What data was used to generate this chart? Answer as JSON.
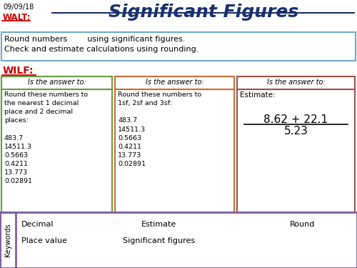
{
  "date": "09/09/18",
  "title": "Significant Figures",
  "walt_label": "WALT:",
  "walt_text_line1": "Round numbers        using significant figures.",
  "walt_text_line2": "Check and estimate calculations using rounding.",
  "wilf_label": "WILF:",
  "box1_header": "Is the answer to:",
  "box1_header_bg": "#8db96e",
  "box1_border": "#6a9a40",
  "box1_bg": "#e8f0d8",
  "box1_text": "Round these numbers to\nthe nearest 1 decimal\nplace and 2 decimal\nplaces:\n\n483.7\n14511.3\n0.5663\n0.4211\n13.773\n0.02891",
  "box2_header": "Is the answer to:",
  "box2_header_bg": "#e8965a",
  "box2_border": "#c87030",
  "box2_bg": "#fce8d8",
  "box2_text": "Round these numbers to\n1sf, 2sf and 3sf:\n\n483.7\n14511.3\n0.5663\n0.4211\n13.773\n0.02891",
  "box3_header": "Is the answer to:",
  "box3_header_bg": "#c07070",
  "box3_border": "#a05050",
  "box3_bg": "#f8dada",
  "box3_label": "Estimate:",
  "box3_numerator": "8.62 + 22.1",
  "box3_denominator": "5.23",
  "kw_bg": "#e0d8f0",
  "kw_border": "#8060a0",
  "kw_label": "Keywords",
  "kw_row1": [
    "Decimal",
    "Estimate",
    "Round"
  ],
  "kw_row2": [
    "Place value",
    "Significant figures"
  ],
  "walt_box_bg": "#d8eef8",
  "walt_box_border": "#70aac8",
  "title_color": "#1a2f6e",
  "red_color": "#cc0000",
  "white": "#ffffff"
}
